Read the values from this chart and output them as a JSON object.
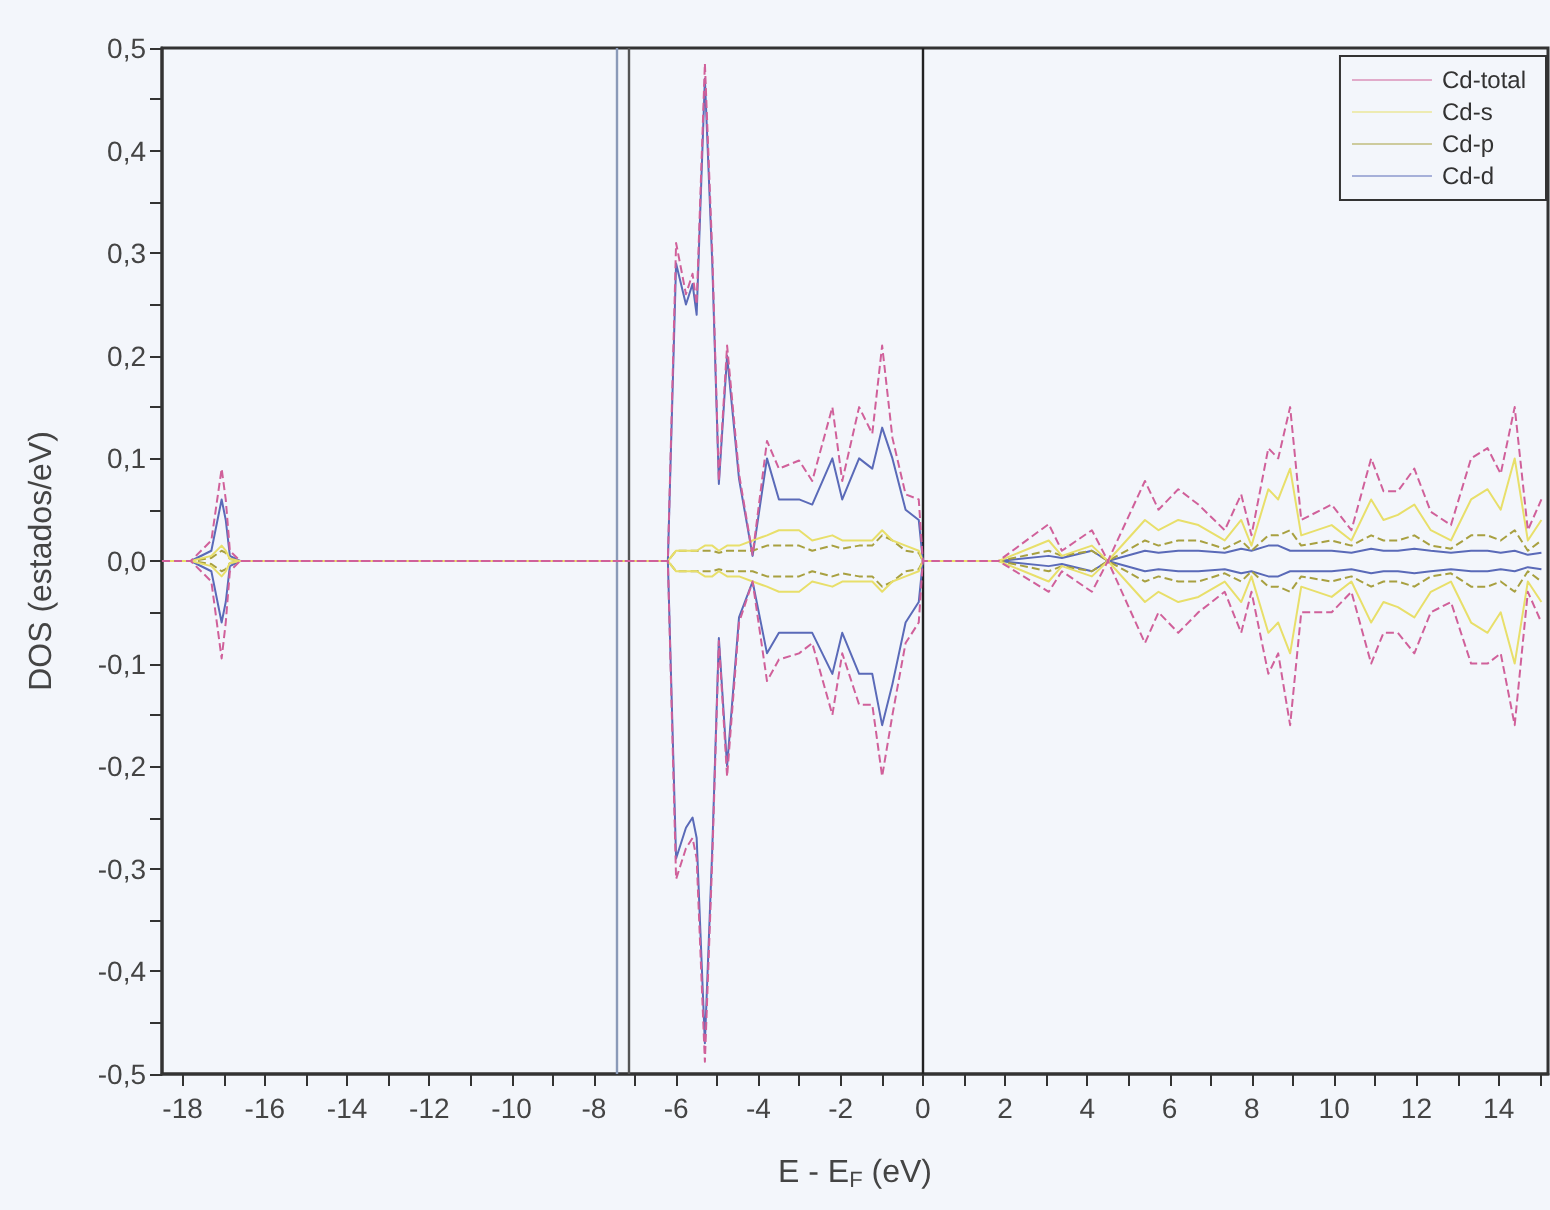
{
  "chart_data": {
    "type": "line",
    "xlabel": "E - E$_{F}$ (eV)",
    "ylabel": "DOS (estados/eV)",
    "x": [
      -18.5,
      -17.8,
      -17.3,
      -17.05,
      -16.95,
      -16.85,
      -16.6,
      -7.5,
      -6.2,
      -6.0,
      -5.76,
      -5.6,
      -5.5,
      -5.3,
      -5.12,
      -4.96,
      -4.76,
      -4.47,
      -4.14,
      -3.79,
      -3.5,
      -3.01,
      -2.69,
      -2.2,
      -1.96,
      -1.55,
      -1.23,
      -0.99,
      -0.74,
      -0.42,
      -0.1,
      0,
      1.84,
      3.06,
      3.38,
      4.11,
      4.5,
      5.4,
      5.73,
      6.21,
      6.7,
      7.34,
      7.74,
      7.99,
      8.4,
      8.64,
      8.93,
      9.2,
      9.94,
      10.42,
      10.9,
      11.2,
      11.55,
      11.95,
      12.35,
      12.84,
      13.33,
      13.73,
      14.05,
      14.39,
      14.71,
      15.04
    ],
    "series": [
      {
        "name": "Cd-total",
        "color": "#d0609a",
        "line_style": "dashed",
        "values": [
          0,
          0,
          0.02,
          0.09,
          0.06,
          0.01,
          0,
          0,
          0,
          0.31,
          0.26,
          0.28,
          0.25,
          0.485,
          0.3,
          0.078,
          0.21,
          0.085,
          0.006,
          0.117,
          0.09,
          0.098,
          0.078,
          0.15,
          0.078,
          0.15,
          0.124,
          0.21,
          0.12,
          0.065,
          0.06,
          0,
          0,
          0.036,
          0.01,
          0.03,
          0,
          0.078,
          0.05,
          0.07,
          0.055,
          0.03,
          0.065,
          0.025,
          0.11,
          0.1,
          0.15,
          0.04,
          0.055,
          0.03,
          0.1,
          0.068,
          0.068,
          0.09,
          0.048,
          0.035,
          0.1,
          0.11,
          0.085,
          0.15,
          0.03,
          0.06
        ]
      },
      {
        "name": "Cd-s",
        "color": "#e8df6a",
        "line_style": "solid",
        "values": [
          0,
          0,
          0.005,
          0.015,
          0.01,
          0.002,
          0,
          0,
          0,
          0.01,
          0.01,
          0.01,
          0.01,
          0.015,
          0.015,
          0.01,
          0.015,
          0.015,
          0.02,
          0.025,
          0.03,
          0.03,
          0.02,
          0.025,
          0.02,
          0.02,
          0.02,
          0.03,
          0.02,
          0.015,
          0.01,
          0,
          0,
          0.02,
          0.005,
          0.015,
          0,
          0.04,
          0.03,
          0.04,
          0.035,
          0.02,
          0.04,
          0.015,
          0.07,
          0.06,
          0.09,
          0.025,
          0.035,
          0.02,
          0.06,
          0.04,
          0.045,
          0.055,
          0.03,
          0.02,
          0.06,
          0.07,
          0.05,
          0.1,
          0.02,
          0.04
        ]
      },
      {
        "name": "Cd-p",
        "color": "#a8a040",
        "line_style": "dashed",
        "values": [
          0,
          0,
          0.003,
          0.01,
          0.008,
          0.002,
          0,
          0,
          0,
          0.01,
          0.01,
          0.01,
          0.01,
          0.01,
          0.01,
          0.008,
          0.01,
          0.01,
          0.01,
          0.015,
          0.015,
          0.015,
          0.01,
          0.015,
          0.012,
          0.015,
          0.015,
          0.025,
          0.02,
          0.01,
          0.008,
          0,
          0,
          0.01,
          0.005,
          0.01,
          0,
          0.02,
          0.015,
          0.02,
          0.02,
          0.012,
          0.02,
          0.01,
          0.025,
          0.025,
          0.03,
          0.015,
          0.02,
          0.015,
          0.025,
          0.02,
          0.02,
          0.025,
          0.015,
          0.012,
          0.025,
          0.025,
          0.02,
          0.03,
          0.01,
          0.02
        ]
      },
      {
        "name": "Cd-d",
        "color": "#5a6ab8",
        "line_style": "solid",
        "values": [
          0,
          0,
          0.01,
          0.06,
          0.04,
          0.005,
          0,
          0,
          0,
          0.29,
          0.25,
          0.27,
          0.24,
          0.47,
          0.29,
          0.075,
          0.2,
          0.08,
          0.005,
          0.1,
          0.06,
          0.06,
          0.055,
          0.1,
          0.06,
          0.1,
          0.09,
          0.13,
          0.1,
          0.05,
          0.04,
          0,
          0,
          0.005,
          0.003,
          0.01,
          0,
          0.01,
          0.008,
          0.01,
          0.01,
          0.008,
          0.012,
          0.01,
          0.015,
          0.015,
          0.01,
          0.01,
          0.01,
          0.008,
          0.012,
          0.01,
          0.01,
          0.012,
          0.01,
          0.008,
          0.01,
          0.01,
          0.008,
          0.01,
          0.006,
          0.008
        ]
      },
      {
        "color": "#d0609a",
        "line_style": "dashed",
        "values": [
          0,
          0,
          -0.02,
          -0.095,
          -0.06,
          -0.01,
          0,
          0,
          0,
          -0.31,
          -0.28,
          -0.27,
          -0.29,
          -0.488,
          -0.29,
          -0.078,
          -0.21,
          -0.06,
          -0.02,
          -0.117,
          -0.096,
          -0.09,
          -0.08,
          -0.15,
          -0.09,
          -0.14,
          -0.14,
          -0.21,
          -0.15,
          -0.08,
          -0.06,
          0,
          0,
          -0.03,
          -0.01,
          -0.03,
          0,
          -0.08,
          -0.05,
          -0.07,
          -0.05,
          -0.03,
          -0.07,
          -0.03,
          -0.11,
          -0.09,
          -0.16,
          -0.05,
          -0.05,
          -0.03,
          -0.1,
          -0.07,
          -0.07,
          -0.09,
          -0.05,
          -0.04,
          -0.1,
          -0.1,
          -0.09,
          -0.16,
          -0.03,
          -0.06
        ]
      },
      {
        "color": "#e8df6a",
        "line_style": "solid",
        "values": [
          0,
          0,
          -0.005,
          -0.015,
          -0.01,
          -0.002,
          0,
          0,
          0,
          -0.01,
          -0.01,
          -0.01,
          -0.01,
          -0.015,
          -0.015,
          -0.01,
          -0.015,
          -0.015,
          -0.02,
          -0.025,
          -0.03,
          -0.03,
          -0.02,
          -0.025,
          -0.02,
          -0.02,
          -0.02,
          -0.03,
          -0.02,
          -0.015,
          -0.01,
          0,
          0,
          -0.02,
          -0.005,
          -0.015,
          0,
          -0.04,
          -0.03,
          -0.04,
          -0.035,
          -0.02,
          -0.04,
          -0.015,
          -0.07,
          -0.06,
          -0.09,
          -0.025,
          -0.035,
          -0.02,
          -0.06,
          -0.04,
          -0.045,
          -0.055,
          -0.03,
          -0.02,
          -0.06,
          -0.07,
          -0.05,
          -0.1,
          -0.02,
          -0.04
        ]
      },
      {
        "color": "#a8a040",
        "line_style": "dashed",
        "values": [
          0,
          0,
          -0.003,
          -0.01,
          -0.008,
          -0.002,
          0,
          0,
          0,
          -0.01,
          -0.01,
          -0.01,
          -0.01,
          -0.01,
          -0.01,
          -0.008,
          -0.01,
          -0.01,
          -0.01,
          -0.015,
          -0.015,
          -0.015,
          -0.01,
          -0.015,
          -0.012,
          -0.015,
          -0.015,
          -0.025,
          -0.02,
          -0.01,
          -0.008,
          0,
          0,
          -0.01,
          -0.005,
          -0.01,
          0,
          -0.02,
          -0.015,
          -0.02,
          -0.02,
          -0.012,
          -0.02,
          -0.01,
          -0.025,
          -0.025,
          -0.03,
          -0.015,
          -0.02,
          -0.015,
          -0.025,
          -0.02,
          -0.02,
          -0.025,
          -0.015,
          -0.012,
          -0.025,
          -0.025,
          -0.02,
          -0.03,
          -0.01,
          -0.02
        ]
      },
      {
        "color": "#5a6ab8",
        "line_style": "solid",
        "values": [
          0,
          0,
          -0.01,
          -0.06,
          -0.04,
          -0.005,
          0,
          0,
          0,
          -0.29,
          -0.26,
          -0.25,
          -0.27,
          -0.47,
          -0.28,
          -0.075,
          -0.2,
          -0.055,
          -0.02,
          -0.09,
          -0.07,
          -0.07,
          -0.07,
          -0.11,
          -0.07,
          -0.11,
          -0.11,
          -0.16,
          -0.12,
          -0.06,
          -0.04,
          0,
          0,
          -0.005,
          -0.003,
          -0.01,
          0,
          -0.01,
          -0.008,
          -0.01,
          -0.01,
          -0.008,
          -0.012,
          -0.01,
          -0.015,
          -0.015,
          -0.01,
          -0.01,
          -0.01,
          -0.008,
          -0.012,
          -0.01,
          -0.01,
          -0.012,
          -0.01,
          -0.008,
          -0.01,
          -0.01,
          -0.008,
          -0.01,
          -0.006,
          -0.008
        ]
      }
    ],
    "ref_lines": [
      {
        "axis": "x",
        "value": -7.46,
        "color": "#8a9ab8"
      },
      {
        "axis": "x",
        "value": -7.14,
        "color": "#555555"
      },
      {
        "axis": "x",
        "value": 0,
        "color": "#222222"
      }
    ],
    "xlim": [
      -18.5,
      15.2
    ],
    "xticks": [
      -18,
      {
        "value": -17,
        "label": null
      },
      -16,
      {
        "value": -15,
        "label": null
      },
      -14,
      {
        "value": -13,
        "label": null
      },
      -12,
      {
        "value": -11,
        "label": null
      },
      -10,
      {
        "value": -9,
        "label": null
      },
      -8,
      {
        "value": -7,
        "label": null
      },
      -6,
      {
        "value": -5,
        "label": null
      },
      -4,
      {
        "value": -3,
        "label": null
      },
      -2,
      {
        "value": -1,
        "label": null
      },
      0,
      {
        "value": 1,
        "label": null
      },
      2,
      {
        "value": 3,
        "label": null
      },
      4,
      {
        "value": 5,
        "label": null
      },
      6,
      {
        "value": 7,
        "label": null
      },
      8,
      {
        "value": 9,
        "label": null
      },
      10,
      {
        "value": 11,
        "label": null
      },
      12,
      {
        "value": 13,
        "label": null
      },
      14,
      {
        "value": 15,
        "label": null
      }
    ],
    "ylim": [
      -0.5,
      0.5
    ],
    "yticks": [
      {
        "value": -0.5,
        "label": "-0,5"
      },
      {
        "value": -0.45,
        "label": null
      },
      {
        "value": -0.4,
        "label": "-0,4"
      },
      {
        "value": -0.35,
        "label": null
      },
      {
        "value": -0.3,
        "label": "-0,3"
      },
      {
        "value": -0.25,
        "label": null
      },
      {
        "value": -0.2,
        "label": "-0,2"
      },
      {
        "value": -0.15,
        "label": null
      },
      {
        "value": -0.1,
        "label": "-0,1"
      },
      {
        "value": -0.05,
        "label": null
      },
      {
        "value": 0,
        "label": "0,0"
      },
      {
        "value": 0.05,
        "label": null
      },
      {
        "value": 0.1,
        "label": "0,1"
      },
      {
        "value": 0.15,
        "label": null
      },
      {
        "value": 0.2,
        "label": "0,2"
      },
      {
        "value": 0.25,
        "label": null
      },
      {
        "value": 0.3,
        "label": "0,3"
      },
      {
        "value": 0.35,
        "label": null
      },
      {
        "value": 0.4,
        "label": "0,4"
      },
      {
        "value": 0.45,
        "label": null
      },
      {
        "value": 0.5,
        "label": "0,5"
      }
    ],
    "legend": "top right",
    "grid": false,
    "marker": "none"
  }
}
